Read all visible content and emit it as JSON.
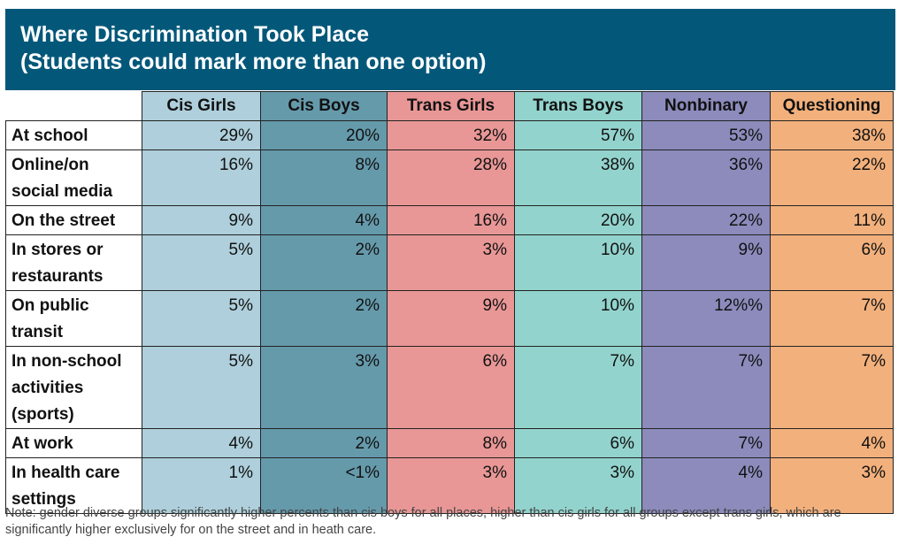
{
  "title": {
    "line1": "Where Discrimination Took Place",
    "line2": "(Students could mark more than one option)"
  },
  "columns": [
    "Cis Girls",
    "Cis Boys",
    "Trans Girls",
    "Trans Boys",
    "Nonbinary",
    "Questioning"
  ],
  "column_colors": [
    "#aecfdb",
    "#659aab",
    "#e89796",
    "#93d3cd",
    "#8c8bbc",
    "#f2b07c"
  ],
  "rows": [
    {
      "label": [
        "At school"
      ],
      "values": [
        "29%",
        "20%",
        "32%",
        "57%",
        "53%",
        "38%"
      ]
    },
    {
      "label": [
        "Online/on",
        "social media"
      ],
      "values": [
        "16%",
        "8%",
        "28%",
        "38%",
        "36%",
        "22%"
      ]
    },
    {
      "label": [
        "On the street"
      ],
      "values": [
        "9%",
        "4%",
        "16%",
        "20%",
        "22%",
        "11%"
      ]
    },
    {
      "label": [
        "In stores or",
        "restaurants"
      ],
      "values": [
        "5%",
        "2%",
        "3%",
        "10%",
        "9%",
        "6%"
      ]
    },
    {
      "label": [
        "On public",
        "transit"
      ],
      "values": [
        "5%",
        "2%",
        "9%",
        "10%",
        "12%%",
        "7%"
      ]
    },
    {
      "label": [
        "In non-school",
        "activities",
        "(sports)"
      ],
      "values": [
        "5%",
        "3%",
        "6%",
        "7%",
        "7%",
        "7%"
      ]
    },
    {
      "label": [
        "At work"
      ],
      "values": [
        "4%",
        "2%",
        "8%",
        "6%",
        "7%",
        "4%"
      ]
    },
    {
      "label": [
        "In health care",
        "settings"
      ],
      "values": [
        "1%",
        "<1%",
        "3%",
        "3%",
        "4%",
        "3%"
      ]
    }
  ],
  "note": "Note: gender diverse groups significantly higher percents than cis boys for all places, higher than cis girls for all groups except trans girls, which are significantly higher exclusively for on the street and in heath care."
}
